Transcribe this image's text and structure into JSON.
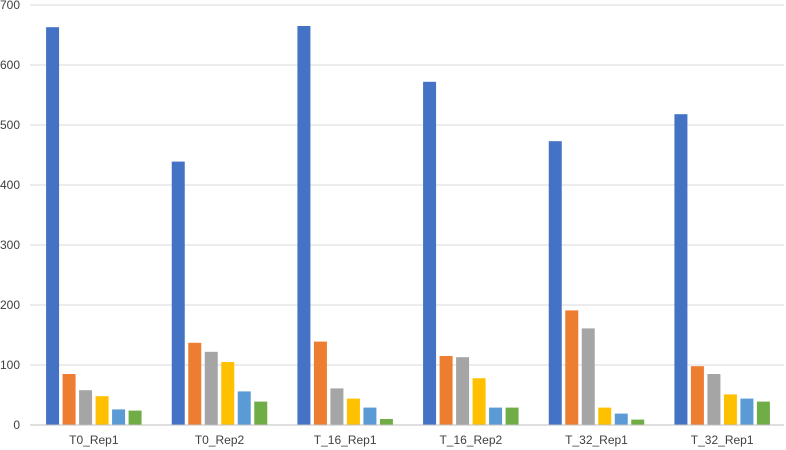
{
  "chart_data": {
    "type": "bar",
    "categories": [
      "T0_Rep1",
      "T0_Rep2",
      "T_16_Rep1",
      "T_16_Rep2",
      "T_32_Rep1",
      "T_32_Rep1"
    ],
    "series": [
      {
        "values": [
          663,
          439,
          665,
          572,
          473,
          518
        ],
        "color": "#4472C4"
      },
      {
        "values": [
          85,
          137,
          139,
          115,
          191,
          98
        ],
        "color": "#ED7D31"
      },
      {
        "values": [
          58,
          122,
          61,
          113,
          161,
          85
        ],
        "color": "#A5A5A5"
      },
      {
        "values": [
          48,
          105,
          44,
          78,
          29,
          51
        ],
        "color": "#FFC000"
      },
      {
        "values": [
          26,
          56,
          29,
          29,
          19,
          44
        ],
        "color": "#5B9BD5"
      },
      {
        "values": [
          24,
          39,
          10,
          29,
          9,
          39
        ],
        "color": "#70AD47"
      }
    ],
    "yticks": [
      "0",
      "100",
      "200",
      "300",
      "400",
      "500",
      "600",
      "700"
    ],
    "ylim": [
      0,
      700
    ],
    "grid": true,
    "legend": "none"
  }
}
